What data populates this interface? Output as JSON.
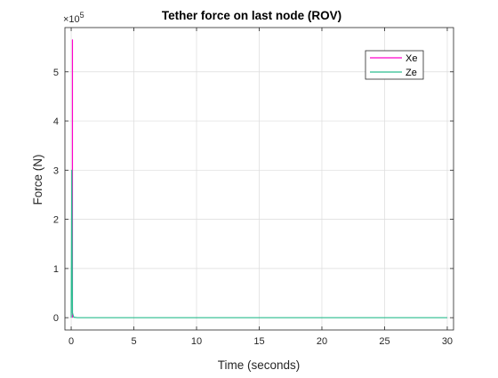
{
  "chart_data": {
    "type": "line",
    "title": "Tether force on last node (ROV)",
    "xlabel": "Time (seconds)",
    "ylabel": "Force (N)",
    "xlim": [
      -0.5,
      30.5
    ],
    "ylim": [
      -0.25,
      5.9
    ],
    "x_ticks": [
      0,
      5,
      10,
      15,
      20,
      25,
      30
    ],
    "x_tick_labels": [
      "0",
      "5",
      "10",
      "15",
      "20",
      "25",
      "30"
    ],
    "y_ticks": [
      0,
      1,
      2,
      3,
      4,
      5
    ],
    "y_tick_labels": [
      "0",
      "1",
      "2",
      "3",
      "4",
      "5"
    ],
    "y_exponent_label": "×10",
    "y_exponent_power": "5",
    "y_exponent_value": 100000,
    "grid": true,
    "legend_position": "top-right",
    "series": [
      {
        "name": "Xe",
        "color": "#ff00cc",
        "x": [
          0.1,
          0.1,
          0.1,
          0.1
        ],
        "y": [
          3.45,
          5.65,
          0.0,
          0.0
        ]
      },
      {
        "name": "Ze",
        "color": "#2bbd8f",
        "x": [
          0.0,
          0.05,
          0.1,
          0.2,
          0.5,
          1,
          2,
          5,
          10,
          15,
          20,
          25,
          30
        ],
        "y": [
          0.0,
          3.0,
          0.1,
          0.01,
          0.0,
          0.0,
          0.0,
          0.0,
          0.0,
          0.0,
          0.0,
          0.0,
          0.0
        ]
      }
    ]
  }
}
